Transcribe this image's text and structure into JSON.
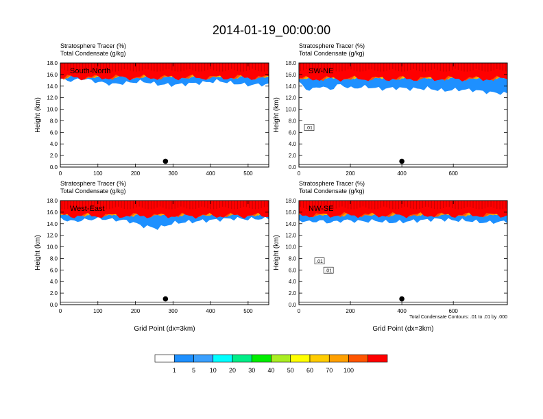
{
  "figure_title": "2014-01-19_00:00:00",
  "colors": {
    "tracer_levels": [
      "#ffffff",
      "#1e90ff",
      "#3aa0ff",
      "#00ffff",
      "#00ee88",
      "#00ee00",
      "#aaee22",
      "#ffff00",
      "#ffcc00",
      "#ffa000",
      "#ff5500",
      "#ff0000"
    ],
    "contour": "#000000",
    "marker": "#000000"
  },
  "colorbar": {
    "labels": [
      "1",
      "5",
      "10",
      "20",
      "30",
      "40",
      "50",
      "60",
      "70",
      "100"
    ]
  },
  "chart_data": [
    {
      "type": "heatmap",
      "panel_label": "South-North",
      "title_lines": [
        "Stratosphere Tracer   (%)",
        "Total Condensate   (g/kg)"
      ],
      "ylabel": "Height (km)",
      "xlabel": "",
      "ylim": [
        0,
        18
      ],
      "xlim": [
        0,
        555
      ],
      "y_ticks": [
        "0.0",
        "2.0",
        "4.0",
        "6.0",
        "8.0",
        "10.0",
        "12.0",
        "14.0",
        "16.0",
        "18.0"
      ],
      "x_ticks": [
        0,
        100,
        200,
        300,
        400,
        500
      ],
      "marker": {
        "x": 280,
        "y": 1.0
      },
      "contour_labels": [],
      "cloud_bottom_km": [
        [
          0,
          15.2
        ],
        [
          30,
          14.9
        ],
        [
          60,
          15.3
        ],
        [
          100,
          14.7
        ],
        [
          140,
          14.3
        ],
        [
          180,
          14.6
        ],
        [
          220,
          14.8
        ],
        [
          260,
          14.3
        ],
        [
          300,
          14.2
        ],
        [
          340,
          14.4
        ],
        [
          380,
          14.6
        ],
        [
          420,
          14.9
        ],
        [
          460,
          14.5
        ],
        [
          500,
          14.2
        ],
        [
          555,
          14.3
        ]
      ],
      "band_heights_km": [
        17.1,
        16.7,
        16.5,
        16.4,
        16.3,
        16.2,
        16.0,
        15.8,
        15.6,
        15.5
      ]
    },
    {
      "type": "heatmap",
      "panel_label": "SW-NE",
      "title_lines": [
        "Stratosphere Tracer   (%)",
        "Total Condensate   (g/kg)"
      ],
      "ylabel": "Height (km)",
      "xlabel": "",
      "ylim": [
        0,
        18
      ],
      "xlim": [
        0,
        810
      ],
      "y_ticks": [
        "0.0",
        "2.0",
        "4.0",
        "6.0",
        "8.0",
        "10.0",
        "12.0",
        "14.0",
        "16.0",
        "18.0"
      ],
      "x_ticks": [
        0,
        200,
        400,
        600
      ],
      "marker": {
        "x": 400,
        "y": 1.0
      },
      "contour_labels": [
        {
          "text": ".01",
          "x": 40,
          "y": 6.8
        }
      ],
      "cloud_bottom_km": [
        [
          0,
          14.6
        ],
        [
          40,
          13.2
        ],
        [
          80,
          14.0
        ],
        [
          120,
          13.4
        ],
        [
          160,
          14.3
        ],
        [
          200,
          13.6
        ],
        [
          260,
          13.9
        ],
        [
          320,
          13.5
        ],
        [
          380,
          13.7
        ],
        [
          440,
          13.5
        ],
        [
          500,
          13.6
        ],
        [
          560,
          13.2
        ],
        [
          620,
          13.4
        ],
        [
          680,
          13.3
        ],
        [
          740,
          12.9
        ],
        [
          810,
          12.7
        ]
      ],
      "band_heights_km": [
        17.0,
        16.7,
        16.4,
        16.2,
        16.0,
        15.9,
        15.7,
        15.6,
        15.4,
        15.3
      ]
    },
    {
      "type": "heatmap",
      "panel_label": "West-East",
      "title_lines": [
        "Stratosphere Tracer   (%)",
        "Total Condensate   (g/kg)"
      ],
      "ylabel": "Height (km)",
      "xlabel": "Grid Point (dx=3km)",
      "ylim": [
        0,
        18
      ],
      "xlim": [
        0,
        555
      ],
      "y_ticks": [
        "0.0",
        "2.0",
        "4.0",
        "6.0",
        "8.0",
        "10.0",
        "12.0",
        "14.0",
        "16.0",
        "18.0"
      ],
      "x_ticks": [
        0,
        100,
        200,
        300,
        400,
        500
      ],
      "marker": {
        "x": 280,
        "y": 1.0
      },
      "contour_labels": [],
      "cloud_bottom_km": [
        [
          0,
          14.9
        ],
        [
          30,
          14.4
        ],
        [
          60,
          14.6
        ],
        [
          100,
          14.9
        ],
        [
          140,
          14.7
        ],
        [
          180,
          14.5
        ],
        [
          220,
          13.6
        ],
        [
          260,
          13.2
        ],
        [
          300,
          14.1
        ],
        [
          340,
          14.3
        ],
        [
          380,
          14.5
        ],
        [
          420,
          14.7
        ],
        [
          460,
          14.9
        ],
        [
          500,
          14.8
        ],
        [
          555,
          14.9
        ]
      ],
      "band_heights_km": [
        17.0,
        16.7,
        16.5,
        16.3,
        16.2,
        16.0,
        15.9,
        15.7,
        15.6,
        15.4
      ]
    },
    {
      "type": "heatmap",
      "panel_label": "NW-SE",
      "title_lines": [
        "Stratosphere Tracer   (%)",
        "Total Condensate   (g/kg)"
      ],
      "ylabel": "Height (km)",
      "xlabel": "Grid Point (dx=3km)",
      "ylim": [
        0,
        18
      ],
      "xlim": [
        0,
        810
      ],
      "y_ticks": [
        "0.0",
        "2.0",
        "4.0",
        "6.0",
        "8.0",
        "10.0",
        "12.0",
        "14.0",
        "16.0",
        "18.0"
      ],
      "x_ticks": [
        0,
        200,
        400,
        600
      ],
      "marker": {
        "x": 400,
        "y": 1.0
      },
      "contour_labels": [
        {
          "text": ".01",
          "x": 80,
          "y": 7.5
        },
        {
          "text": ".01",
          "x": 115,
          "y": 5.9
        }
      ],
      "contour_note": "Total Condensate Contours: .01 to .01 by .000",
      "cloud_bottom_km": [
        [
          0,
          14.6
        ],
        [
          40,
          14.3
        ],
        [
          80,
          14.5
        ],
        [
          120,
          14.2
        ],
        [
          180,
          14.6
        ],
        [
          240,
          14.4
        ],
        [
          300,
          14.5
        ],
        [
          360,
          14.2
        ],
        [
          420,
          14.4
        ],
        [
          480,
          14.6
        ],
        [
          540,
          14.8
        ],
        [
          600,
          14.6
        ],
        [
          660,
          14.5
        ],
        [
          720,
          14.2
        ],
        [
          780,
          14.3
        ],
        [
          810,
          14.4
        ]
      ],
      "band_heights_km": [
        17.0,
        16.7,
        16.5,
        16.3,
        16.2,
        16.0,
        15.9,
        15.7,
        15.6,
        15.5
      ]
    }
  ]
}
